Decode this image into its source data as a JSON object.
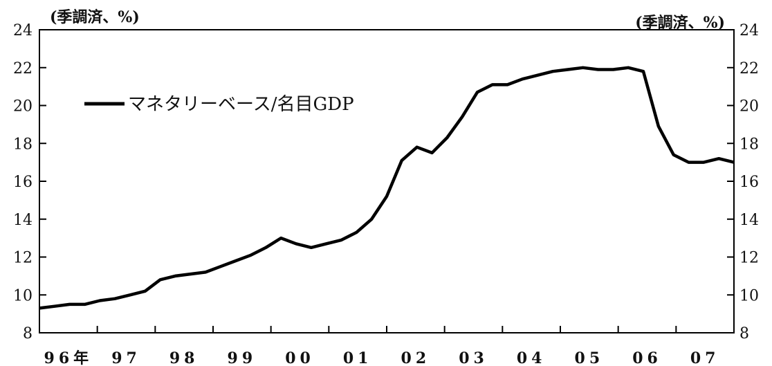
{
  "chart_data": {
    "type": "line",
    "left_unit_label": "(季調済、%)",
    "right_unit_label": "(季調済、%)",
    "ylim": [
      8,
      24
    ],
    "y_ticks": [
      8,
      10,
      12,
      14,
      16,
      18,
      20,
      22,
      24
    ],
    "x_tick_labels": [
      "96年",
      "97",
      "98",
      "99",
      "00",
      "01",
      "02",
      "03",
      "04",
      "05",
      "06",
      "07"
    ],
    "x_tick_year_index": [
      0,
      1,
      2,
      3,
      4,
      5,
      6,
      7,
      8,
      9,
      10,
      11
    ],
    "series": [
      {
        "name": "マネタリーベース/名目GDP",
        "color": "#000000",
        "values": [
          9.3,
          9.4,
          9.5,
          9.5,
          9.7,
          9.8,
          10.0,
          10.2,
          10.8,
          11.0,
          11.1,
          11.2,
          11.5,
          11.8,
          12.1,
          12.5,
          13.0,
          12.7,
          12.5,
          12.7,
          12.9,
          13.3,
          14.0,
          15.2,
          17.1,
          17.8,
          17.5,
          18.3,
          19.4,
          20.7,
          21.1,
          21.1,
          21.4,
          21.6,
          21.8,
          21.9,
          22.0,
          21.9,
          21.9,
          22.0,
          21.8,
          18.9,
          17.4,
          17.0,
          17.0,
          17.2,
          17.0
        ]
      }
    ],
    "legend": {
      "label": "マネタリーベース/名目GDP",
      "placement": "upper-left"
    }
  }
}
